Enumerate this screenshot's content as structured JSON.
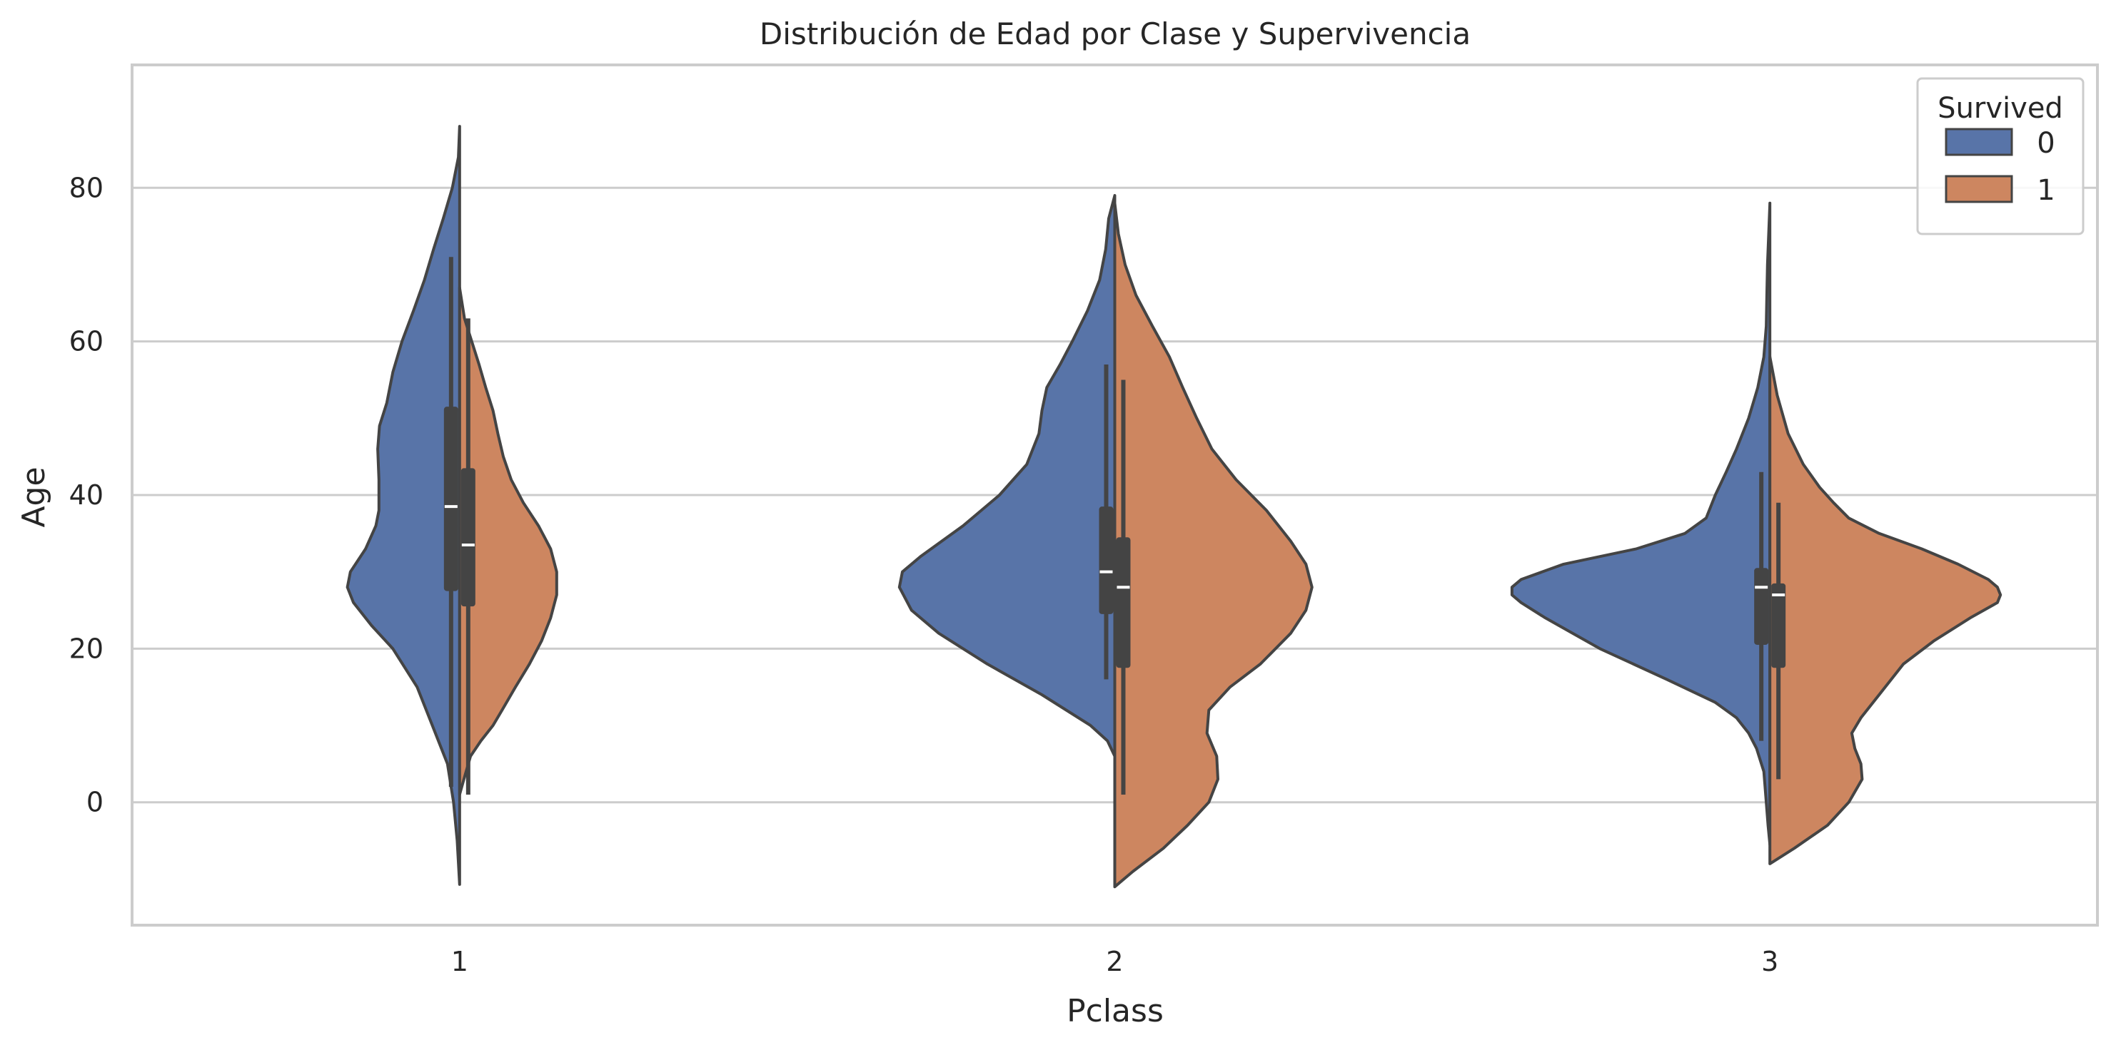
{
  "chart_data": {
    "type": "violin",
    "split": true,
    "title": "Distribución de Edad por Clase y Supervivencia",
    "xlabel": "Pclass",
    "ylabel": "Age",
    "categories": [
      "1",
      "2",
      "3"
    ],
    "y_ticks": [
      0,
      20,
      40,
      60,
      80
    ],
    "ylim": [
      -16,
      96
    ],
    "grid": "horizontal",
    "legend": {
      "title": "Survived",
      "placement": "top-right",
      "entries": [
        {
          "label": "0",
          "color": "#5874a8"
        },
        {
          "label": "1",
          "color": "#cd8660"
        }
      ]
    },
    "series": [
      {
        "name": "0",
        "color": "#5874a8",
        "side": "left",
        "violins": [
          {
            "category": "1",
            "profile": [
              [
                -10.7,
                0.0
              ],
              [
                -5,
                0.04
              ],
              [
                0,
                0.1
              ],
              [
                5,
                0.2
              ],
              [
                10,
                0.45
              ],
              [
                15,
                0.7
              ],
              [
                20,
                1.1
              ],
              [
                23,
                1.45
              ],
              [
                26,
                1.75
              ],
              [
                28,
                1.85
              ],
              [
                30,
                1.8
              ],
              [
                33,
                1.55
              ],
              [
                36,
                1.38
              ],
              [
                38,
                1.33
              ],
              [
                42,
                1.33
              ],
              [
                46,
                1.35
              ],
              [
                49,
                1.32
              ],
              [
                52,
                1.2
              ],
              [
                56,
                1.1
              ],
              [
                60,
                0.95
              ],
              [
                64,
                0.76
              ],
              [
                68,
                0.58
              ],
              [
                72,
                0.43
              ],
              [
                76,
                0.27
              ],
              [
                80,
                0.12
              ],
              [
                84,
                0.02
              ],
              [
                88,
                0.0
              ]
            ],
            "whisker": [
              2,
              71
            ],
            "iqr": [
              27.5,
              51.5
            ],
            "median": 38.5
          },
          {
            "category": "2",
            "profile": [
              [
                6,
                0.0
              ],
              [
                8,
                0.12
              ],
              [
                10,
                0.4
              ],
              [
                14,
                1.2
              ],
              [
                18,
                2.1
              ],
              [
                22,
                2.9
              ],
              [
                25,
                3.35
              ],
              [
                28,
                3.55
              ],
              [
                30,
                3.5
              ],
              [
                32,
                3.2
              ],
              [
                36,
                2.5
              ],
              [
                40,
                1.9
              ],
              [
                44,
                1.45
              ],
              [
                48,
                1.25
              ],
              [
                51,
                1.2
              ],
              [
                54,
                1.12
              ],
              [
                57,
                0.9
              ],
              [
                60,
                0.7
              ],
              [
                64,
                0.45
              ],
              [
                68,
                0.25
              ],
              [
                72,
                0.15
              ],
              [
                76,
                0.1
              ],
              [
                79,
                0.0
              ]
            ],
            "whisker": [
              16,
              57
            ],
            "iqr": [
              24.5,
              38.5
            ],
            "median": 30
          },
          {
            "category": "3",
            "profile": [
              [
                -5.5,
                0.0
              ],
              [
                -3,
                0.03
              ],
              [
                0,
                0.06
              ],
              [
                4,
                0.1
              ],
              [
                7,
                0.22
              ],
              [
                9,
                0.35
              ],
              [
                11,
                0.55
              ],
              [
                13,
                0.9
              ],
              [
                16,
                1.7
              ],
              [
                20,
                2.8
              ],
              [
                24,
                3.7
              ],
              [
                26,
                4.1
              ],
              [
                27,
                4.25
              ],
              [
                28,
                4.25
              ],
              [
                29,
                4.1
              ],
              [
                31,
                3.4
              ],
              [
                33,
                2.2
              ],
              [
                35,
                1.4
              ],
              [
                37,
                1.05
              ],
              [
                40,
                0.9
              ],
              [
                43,
                0.72
              ],
              [
                46,
                0.55
              ],
              [
                50,
                0.35
              ],
              [
                54,
                0.2
              ],
              [
                58,
                0.1
              ],
              [
                62,
                0.06
              ],
              [
                66,
                0.05
              ],
              [
                70,
                0.04
              ],
              [
                74,
                0.02
              ],
              [
                78,
                0.0
              ]
            ],
            "whisker": [
              8,
              43
            ],
            "iqr": [
              20.5,
              30.5
            ],
            "median": 28
          }
        ]
      },
      {
        "name": "1",
        "color": "#cd8660",
        "side": "right",
        "violins": [
          {
            "category": "1",
            "profile": [
              [
                1,
                0.0
              ],
              [
                3,
                0.07
              ],
              [
                6,
                0.18
              ],
              [
                8,
                0.35
              ],
              [
                10,
                0.55
              ],
              [
                12,
                0.7
              ],
              [
                15,
                0.92
              ],
              [
                18,
                1.15
              ],
              [
                21,
                1.35
              ],
              [
                24,
                1.5
              ],
              [
                27,
                1.6
              ],
              [
                30,
                1.6
              ],
              [
                33,
                1.5
              ],
              [
                36,
                1.3
              ],
              [
                39,
                1.05
              ],
              [
                42,
                0.85
              ],
              [
                45,
                0.72
              ],
              [
                48,
                0.63
              ],
              [
                51,
                0.55
              ],
              [
                54,
                0.43
              ],
              [
                57,
                0.32
              ],
              [
                60,
                0.2
              ],
              [
                63,
                0.08
              ],
              [
                67,
                0.0
              ]
            ],
            "whisker": [
              1,
              63
            ],
            "iqr": [
              25.5,
              43.5
            ],
            "median": 33.5
          },
          {
            "category": "2",
            "profile": [
              [
                -11,
                0.0
              ],
              [
                -9,
                0.3
              ],
              [
                -6,
                0.8
              ],
              [
                -3,
                1.2
              ],
              [
                0,
                1.55
              ],
              [
                3,
                1.7
              ],
              [
                6,
                1.68
              ],
              [
                9,
                1.52
              ],
              [
                12,
                1.55
              ],
              [
                15,
                1.9
              ],
              [
                18,
                2.4
              ],
              [
                22,
                2.9
              ],
              [
                25,
                3.15
              ],
              [
                28,
                3.25
              ],
              [
                31,
                3.15
              ],
              [
                34,
                2.9
              ],
              [
                38,
                2.5
              ],
              [
                42,
                2.0
              ],
              [
                46,
                1.6
              ],
              [
                50,
                1.35
              ],
              [
                54,
                1.12
              ],
              [
                58,
                0.9
              ],
              [
                62,
                0.62
              ],
              [
                66,
                0.35
              ],
              [
                70,
                0.17
              ],
              [
                74,
                0.06
              ],
              [
                78,
                0.0
              ]
            ],
            "whisker": [
              1,
              55
            ],
            "iqr": [
              17.5,
              34.5
            ],
            "median": 28
          },
          {
            "category": "3",
            "profile": [
              [
                -8,
                0.0
              ],
              [
                -6,
                0.4
              ],
              [
                -3,
                0.95
              ],
              [
                0,
                1.3
              ],
              [
                3,
                1.52
              ],
              [
                5,
                1.5
              ],
              [
                7,
                1.4
              ],
              [
                9,
                1.35
              ],
              [
                11,
                1.5
              ],
              [
                14,
                1.8
              ],
              [
                18,
                2.2
              ],
              [
                21,
                2.7
              ],
              [
                24,
                3.3
              ],
              [
                26,
                3.75
              ],
              [
                27,
                3.8
              ],
              [
                28,
                3.75
              ],
              [
                29,
                3.6
              ],
              [
                31,
                3.1
              ],
              [
                33,
                2.5
              ],
              [
                35,
                1.8
              ],
              [
                37,
                1.3
              ],
              [
                39,
                1.05
              ],
              [
                41,
                0.82
              ],
              [
                44,
                0.55
              ],
              [
                48,
                0.3
              ],
              [
                53,
                0.12
              ],
              [
                58,
                0.0
              ]
            ],
            "whisker": [
              3,
              39
            ],
            "iqr": [
              17.5,
              28.5
            ],
            "median": 27
          }
        ]
      }
    ]
  }
}
